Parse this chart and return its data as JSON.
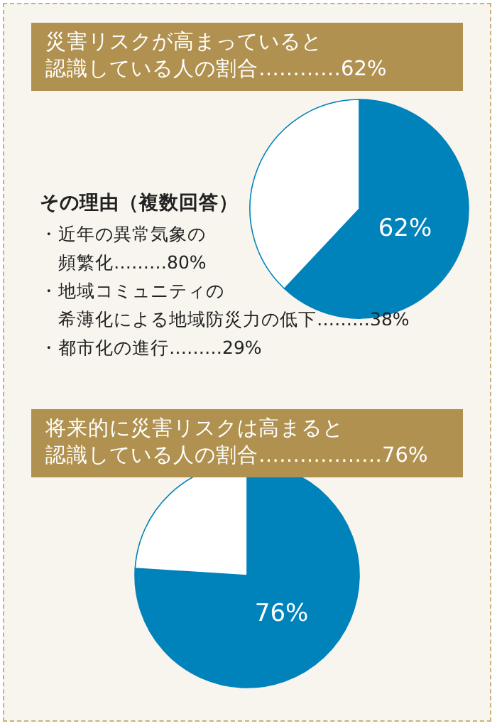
{
  "chart_data": [
    {
      "type": "pie",
      "title": "災害リスクが高まっていると認識している人の割合…………62%",
      "categories": [
        null,
        null
      ],
      "values": [
        62,
        38
      ],
      "colors": [
        "#0082bb",
        "#ffffff"
      ],
      "value_labels": [
        "62%",
        null
      ],
      "annotations": [
        "その理由（複数回答）",
        "・近年の異常気象の頻繁化………80%",
        "・地域コミュニティの希薄化による地域防災力の低下………38%",
        "・都市化の進行………29%"
      ]
    },
    {
      "type": "pie",
      "title": "将来的に災害リスクは高まると認識している人の割合………………76%",
      "categories": [
        null,
        null
      ],
      "values": [
        76,
        24
      ],
      "colors": [
        "#0082bb",
        "#ffffff"
      ],
      "value_labels": [
        "76%",
        null
      ]
    }
  ]
}
